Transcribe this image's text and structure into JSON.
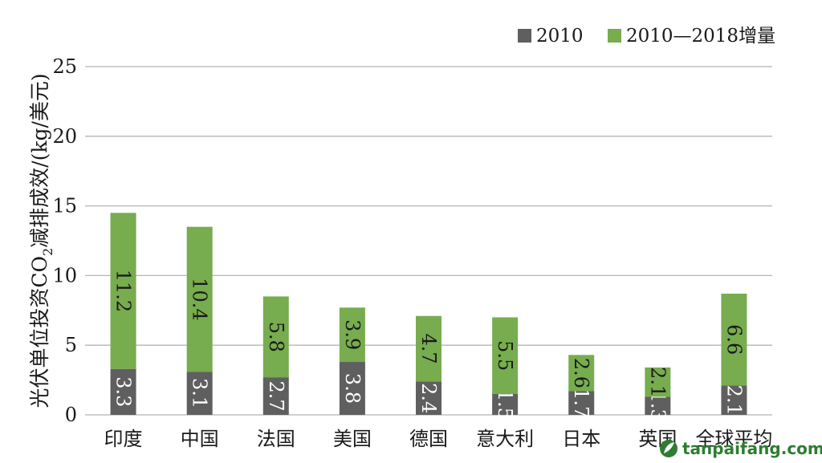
{
  "chart_data": {
    "type": "bar",
    "stacked": true,
    "ylabel_parts": [
      "光伏单位投资CO",
      "2",
      "减排成效/(kg/美元)"
    ],
    "ylim": [
      0,
      25
    ],
    "yticks": [
      0,
      5,
      10,
      15,
      20,
      25
    ],
    "grid": true,
    "legend_position": "top-right",
    "categories": [
      "印度",
      "中国",
      "法国",
      "美国",
      "德国",
      "意大利",
      "日本",
      "英国",
      "全球平均"
    ],
    "series": [
      {
        "name": "2010",
        "color": "#5f5f5f",
        "values": [
          3.3,
          3.1,
          2.7,
          3.8,
          2.4,
          1.5,
          1.7,
          1.3,
          2.1
        ]
      },
      {
        "name": "2010—2018增量",
        "color": "#77ac4f",
        "values": [
          11.2,
          10.4,
          5.8,
          3.9,
          4.7,
          5.5,
          2.6,
          2.1,
          6.6
        ]
      }
    ]
  },
  "watermark": {
    "text": "tanpaifang.com",
    "icon": "leaf-logo-icon",
    "color": "#2e7d32"
  }
}
